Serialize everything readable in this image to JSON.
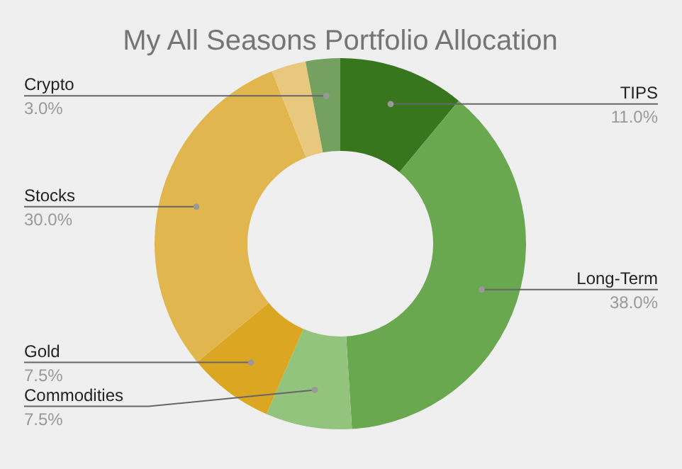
{
  "chart_data": {
    "type": "donut",
    "title": "My All Seasons Portfolio Allocation",
    "categories": [
      "TIPS",
      "Long-Term",
      "Commodities",
      "Gold",
      "Stocks",
      null,
      "Crypto"
    ],
    "values": [
      11,
      38,
      7.5,
      7.5,
      30,
      3,
      3
    ],
    "colors": [
      "#38761d",
      "#6aa84f",
      "#93c47d",
      "#dba723",
      "#e1b64e",
      "#e8c87d",
      "#74a060"
    ],
    "value_labels": [
      "11.0%",
      "38.0%",
      "7.5%",
      "7.5%",
      "30.0%",
      null,
      "3.0%"
    ]
  }
}
